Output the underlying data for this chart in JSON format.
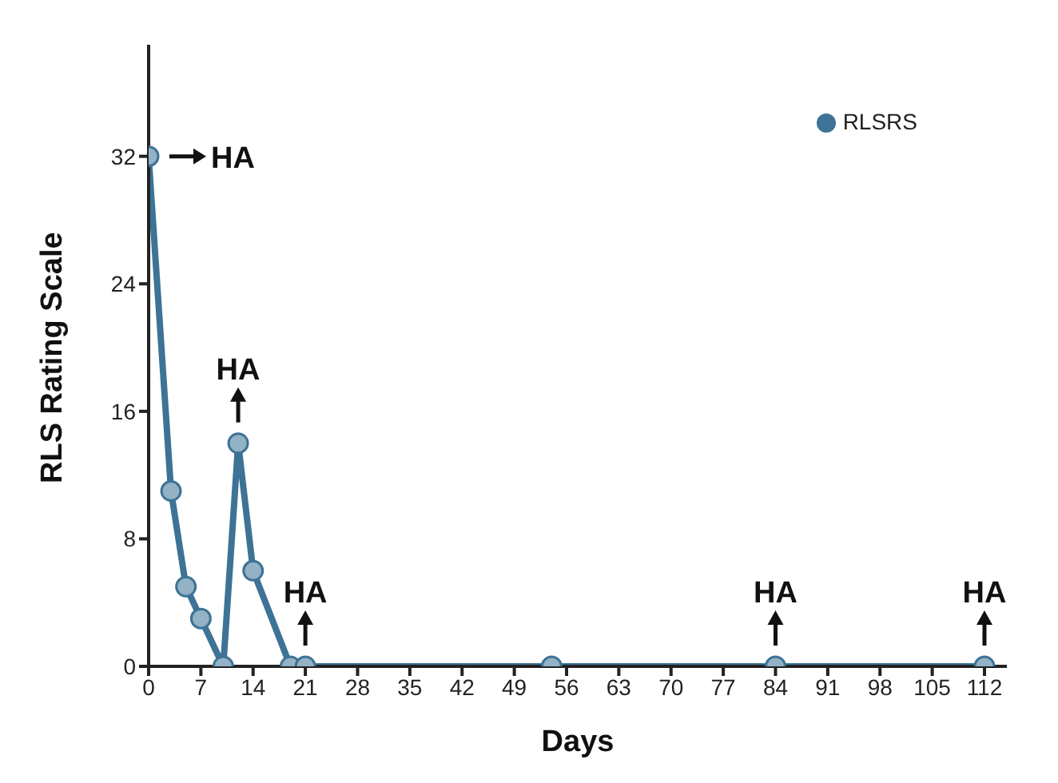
{
  "chart_data": {
    "type": "line",
    "xlabel": "Days",
    "ylabel": "RLS Rating Scale",
    "x": [
      0,
      3,
      5,
      7,
      10,
      12,
      14,
      19,
      21,
      54,
      84,
      112
    ],
    "series": [
      {
        "name": "RLSRS",
        "color": "#3d7396",
        "values": [
          32,
          11,
          5,
          3,
          0,
          14,
          6,
          0,
          0,
          0,
          0,
          0
        ]
      }
    ],
    "xlim": [
      0,
      115
    ],
    "xticks": [
      0,
      7,
      14,
      21,
      28,
      35,
      42,
      49,
      56,
      63,
      70,
      77,
      84,
      91,
      98,
      105,
      112
    ],
    "ylim": [
      0,
      39
    ],
    "yticks": [
      0,
      8,
      16,
      24,
      32
    ],
    "annotations": [
      {
        "text": "HA",
        "x": 0,
        "y": 32
      },
      {
        "text": "HA",
        "x": 12,
        "y": 14
      },
      {
        "text": "HA",
        "x": 21,
        "y": 0
      },
      {
        "text": "HA",
        "x": 84,
        "y": 0
      },
      {
        "text": "HA",
        "x": 112,
        "y": 0
      }
    ],
    "grid": false,
    "legend": "top right",
    "marker": "circle",
    "line_style": "solid"
  }
}
